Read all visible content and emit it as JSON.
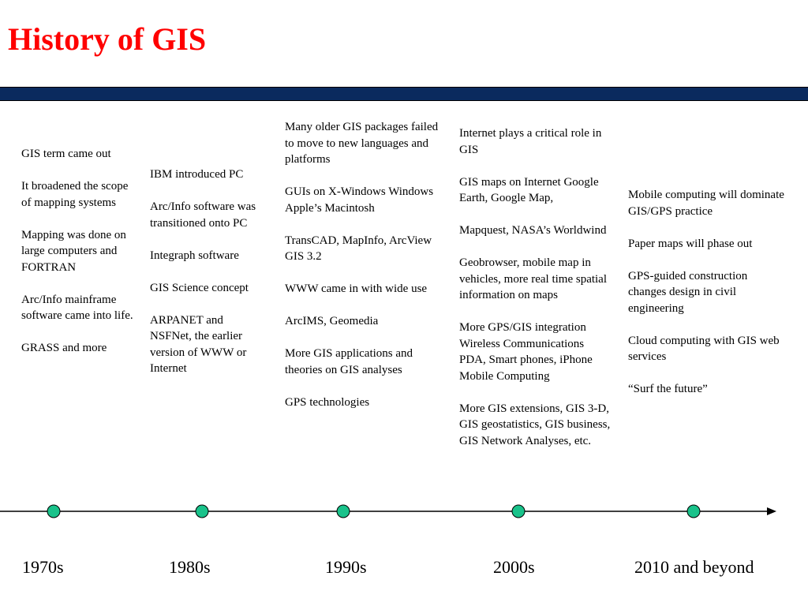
{
  "slide": {
    "title": "History of GIS",
    "accent_color": "#ff0000",
    "band_color": "#0a2a5e",
    "marker_color": "#19c28a"
  },
  "eras": [
    {
      "label": "1970s",
      "items": [
        "GIS term came out",
        "It broadened the scope of mapping systems",
        "Mapping was done on large computers and FORTRAN",
        "Arc/Info mainframe software came into life.",
        "GRASS and more"
      ]
    },
    {
      "label": "1980s",
      "items": [
        "IBM introduced PC",
        "Arc/Info software was transitioned onto PC",
        "Integraph software",
        "GIS Science concept",
        "ARPANET and NSFNet, the earlier version of WWW or Internet"
      ]
    },
    {
      "label": "1990s",
      "items": [
        "Many older GIS packages failed to move to new languages and platforms",
        "GUIs on X-Windows Windows\nApple’s Macintosh",
        "TransCAD, MapInfo, ArcView GIS 3.2",
        "WWW came in with wide use",
        "ArcIMS, Geomedia",
        "More GIS applications and theories on GIS analyses",
        "GPS technologies"
      ]
    },
    {
      "label": "2000s",
      "items": [
        "Internet plays a critical role in GIS",
        "GIS maps on Internet Google Earth, Google Map,",
        "Mapquest, NASA’s Worldwind",
        "Geobrowser, mobile map in vehicles, more real time spatial information on maps",
        "More GPS/GIS integration\nWireless Communications\nPDA, Smart phones, iPhone\nMobile Computing",
        "More GIS extensions, GIS 3-D, GIS geostatistics, GIS business, GIS Network Analyses, etc."
      ]
    },
    {
      "label": "2010 and beyond",
      "items": [
        "Mobile computing will dominate GIS/GPS practice",
        "Paper maps will phase out",
        "GPS-guided construction changes design in civil engineering",
        "Cloud computing with GIS web services",
        "“Surf the future”"
      ]
    }
  ]
}
